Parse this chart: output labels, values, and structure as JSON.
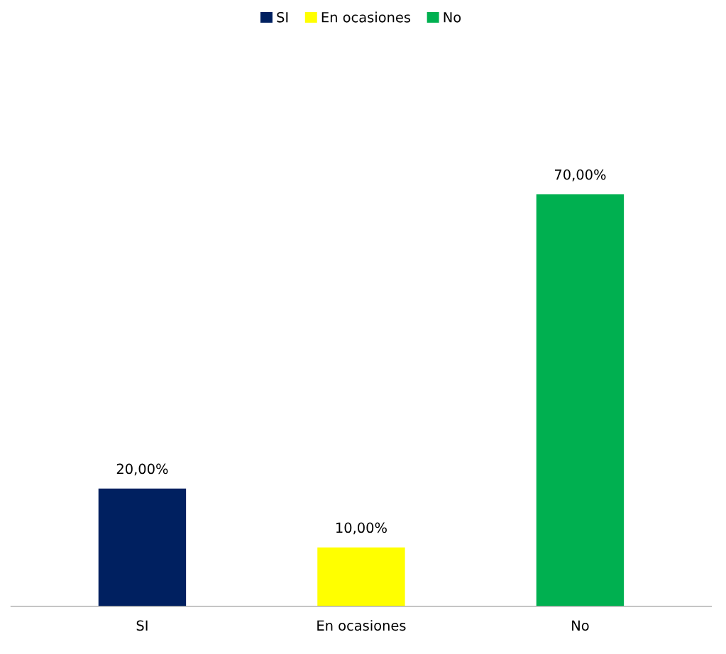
{
  "chart_data": {
    "type": "bar",
    "legend": "top",
    "categories": [
      "SI",
      "En ocasiones",
      "No"
    ],
    "series": [
      {
        "name": "SI",
        "color": "#002060",
        "values": [
          20,
          null,
          null
        ],
        "value_labels": [
          "20,00%",
          null,
          null
        ]
      },
      {
        "name": "En ocasiones",
        "color": "#ffff00",
        "values": [
          null,
          10,
          null
        ],
        "value_labels": [
          null,
          "10,00%",
          null
        ]
      },
      {
        "name": "No",
        "color": "#00b050",
        "values": [
          null,
          null,
          70
        ],
        "value_labels": [
          null,
          null,
          "70,00%"
        ]
      }
    ]
  }
}
